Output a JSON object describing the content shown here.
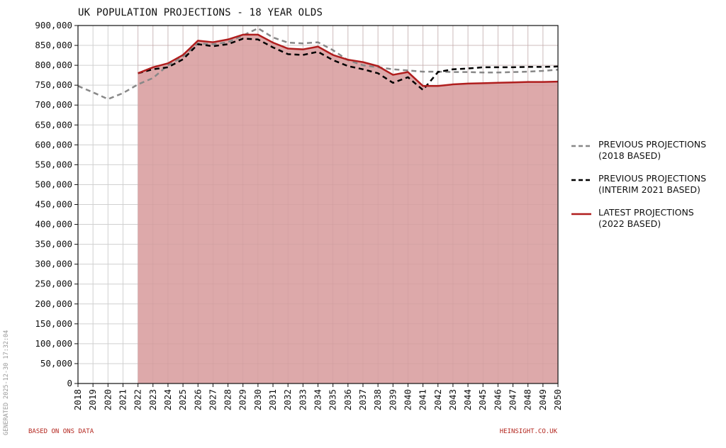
{
  "chart_data": {
    "type": "line",
    "title": "UK POPULATION PROJECTIONS - 18 YEAR OLDS",
    "xlabel": "",
    "ylabel": "",
    "x": [
      2018,
      2019,
      2020,
      2021,
      2022,
      2023,
      2024,
      2025,
      2026,
      2027,
      2028,
      2029,
      2030,
      2031,
      2032,
      2033,
      2034,
      2035,
      2036,
      2037,
      2038,
      2039,
      2040,
      2041,
      2042,
      2043,
      2044,
      2045,
      2046,
      2047,
      2048,
      2049,
      2050
    ],
    "xlim": [
      2018,
      2050
    ],
    "ylim": [
      0,
      900000
    ],
    "ytick_step": 50000,
    "grid": true,
    "legend_position": "right",
    "series": [
      {
        "name": "PREVIOUS PROJECTIONS\n(2018 BASED)",
        "color": "#888888",
        "style": "dashed",
        "x": [
          2018,
          2019,
          2020,
          2021,
          2022,
          2023,
          2024,
          2025,
          2026,
          2027,
          2028,
          2029,
          2030,
          2031,
          2032,
          2033,
          2034,
          2035,
          2036,
          2037,
          2038,
          2039,
          2040,
          2041,
          2042,
          2043,
          2044,
          2045,
          2046,
          2047,
          2048,
          2049,
          2050
        ],
        "values": [
          748000,
          732000,
          715000,
          730000,
          752000,
          768000,
          800000,
          822000,
          855000,
          853000,
          858000,
          875000,
          893000,
          870000,
          857000,
          855000,
          858000,
          838000,
          813000,
          800000,
          795000,
          790000,
          787000,
          784000,
          784000,
          783000,
          783000,
          782000,
          782000,
          783000,
          784000,
          786000,
          789000
        ]
      },
      {
        "name": "PREVIOUS PROJECTIONS\n(INTERIM 2021 BASED)",
        "color": "#000000",
        "style": "dashed",
        "x": [
          2022,
          2023,
          2024,
          2025,
          2026,
          2027,
          2028,
          2029,
          2030,
          2031,
          2032,
          2033,
          2034,
          2035,
          2036,
          2037,
          2038,
          2039,
          2040,
          2041,
          2042,
          2043,
          2044,
          2045,
          2046,
          2047,
          2048,
          2049,
          2050
        ],
        "values": [
          780000,
          790000,
          795000,
          815000,
          853000,
          848000,
          853000,
          867000,
          865000,
          845000,
          828000,
          826000,
          834000,
          813000,
          798000,
          790000,
          780000,
          756000,
          770000,
          738000,
          783000,
          790000,
          792000,
          795000,
          795000,
          795000,
          796000,
          796000,
          797000
        ]
      },
      {
        "name": "LATEST PROJECTIONS\n(2022 BASED)",
        "color": "#b01e1e",
        "style": "solid",
        "fill": "#dda9aa",
        "x": [
          2022,
          2023,
          2024,
          2025,
          2026,
          2027,
          2028,
          2029,
          2030,
          2031,
          2032,
          2033,
          2034,
          2035,
          2036,
          2037,
          2038,
          2039,
          2040,
          2041,
          2042,
          2043,
          2044,
          2045,
          2046,
          2047,
          2048,
          2049,
          2050
        ],
        "values": [
          780000,
          795000,
          805000,
          826000,
          862000,
          858000,
          865000,
          877000,
          877000,
          857000,
          842000,
          840000,
          847000,
          826000,
          814000,
          808000,
          798000,
          776000,
          783000,
          748000,
          748000,
          752000,
          754000,
          755000,
          756000,
          757000,
          758000,
          758000,
          759000
        ]
      }
    ]
  },
  "footer": {
    "source": "BASED ON ONS DATA",
    "site": "HEINSIGHT.CO.UK",
    "generated": "GENERATED 2025-12-30 17:32:04"
  }
}
